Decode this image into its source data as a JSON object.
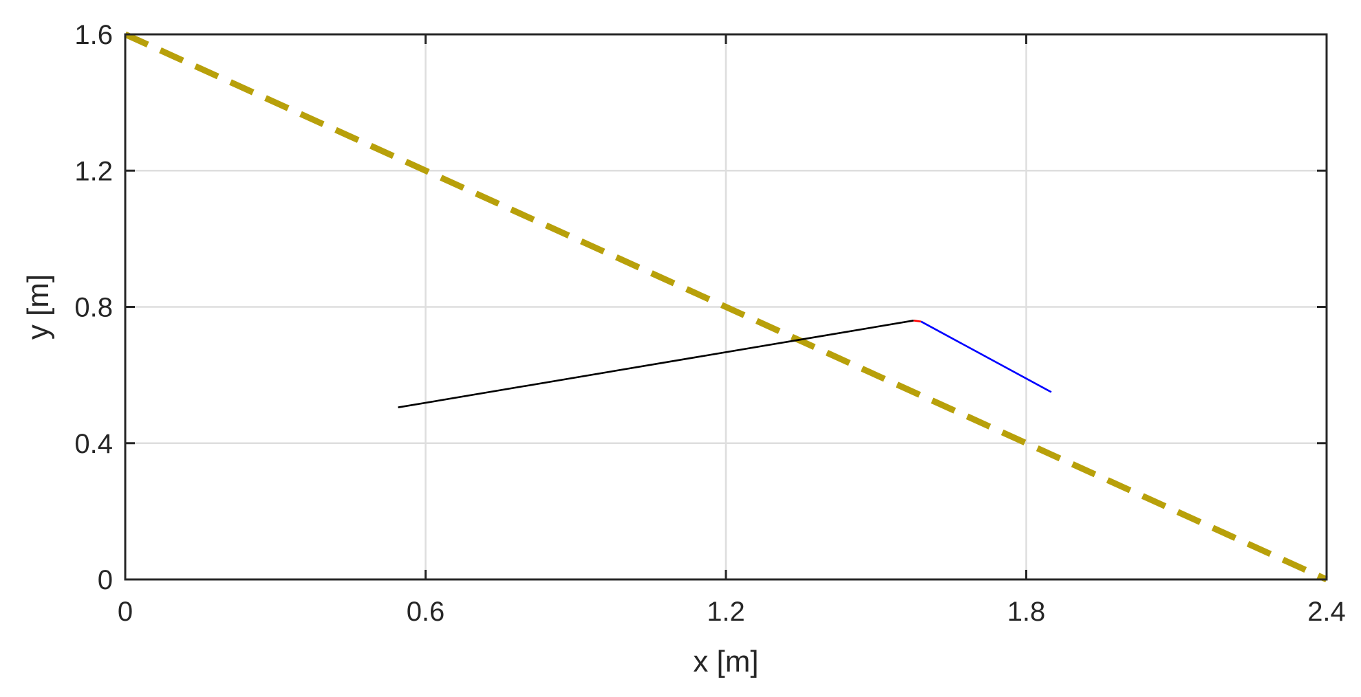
{
  "chart_data": {
    "type": "line",
    "xlabel": "x [m]",
    "ylabel": "y [m]",
    "xlim": [
      0,
      2.4
    ],
    "ylim": [
      0,
      1.6
    ],
    "xticks": [
      0,
      0.6,
      1.2,
      1.8,
      2.4
    ],
    "xtick_labels": [
      "0",
      "0.6",
      "1.2",
      "1.8",
      "2.4"
    ],
    "yticks": [
      0,
      0.4,
      0.8,
      1.2,
      1.6
    ],
    "ytick_labels": [
      "0",
      "0.4",
      "0.8",
      "1.2",
      "1.6"
    ],
    "grid": true,
    "legend": "none",
    "series": [
      {
        "color": "#b8a00a",
        "style": "dashed",
        "x": [
          0,
          2.4
        ],
        "y": [
          1.6,
          0
        ]
      },
      {
        "color": "#000000",
        "style": "solid",
        "x": [
          0.545,
          1.575
        ],
        "y": [
          0.505,
          0.76
        ]
      },
      {
        "color": "#ff0000",
        "style": "solid",
        "x": [
          1.575,
          1.59
        ],
        "y": [
          0.76,
          0.757
        ]
      },
      {
        "color": "#0000ff",
        "style": "solid",
        "x": [
          1.59,
          1.85
        ],
        "y": [
          0.757,
          0.55
        ]
      }
    ]
  }
}
